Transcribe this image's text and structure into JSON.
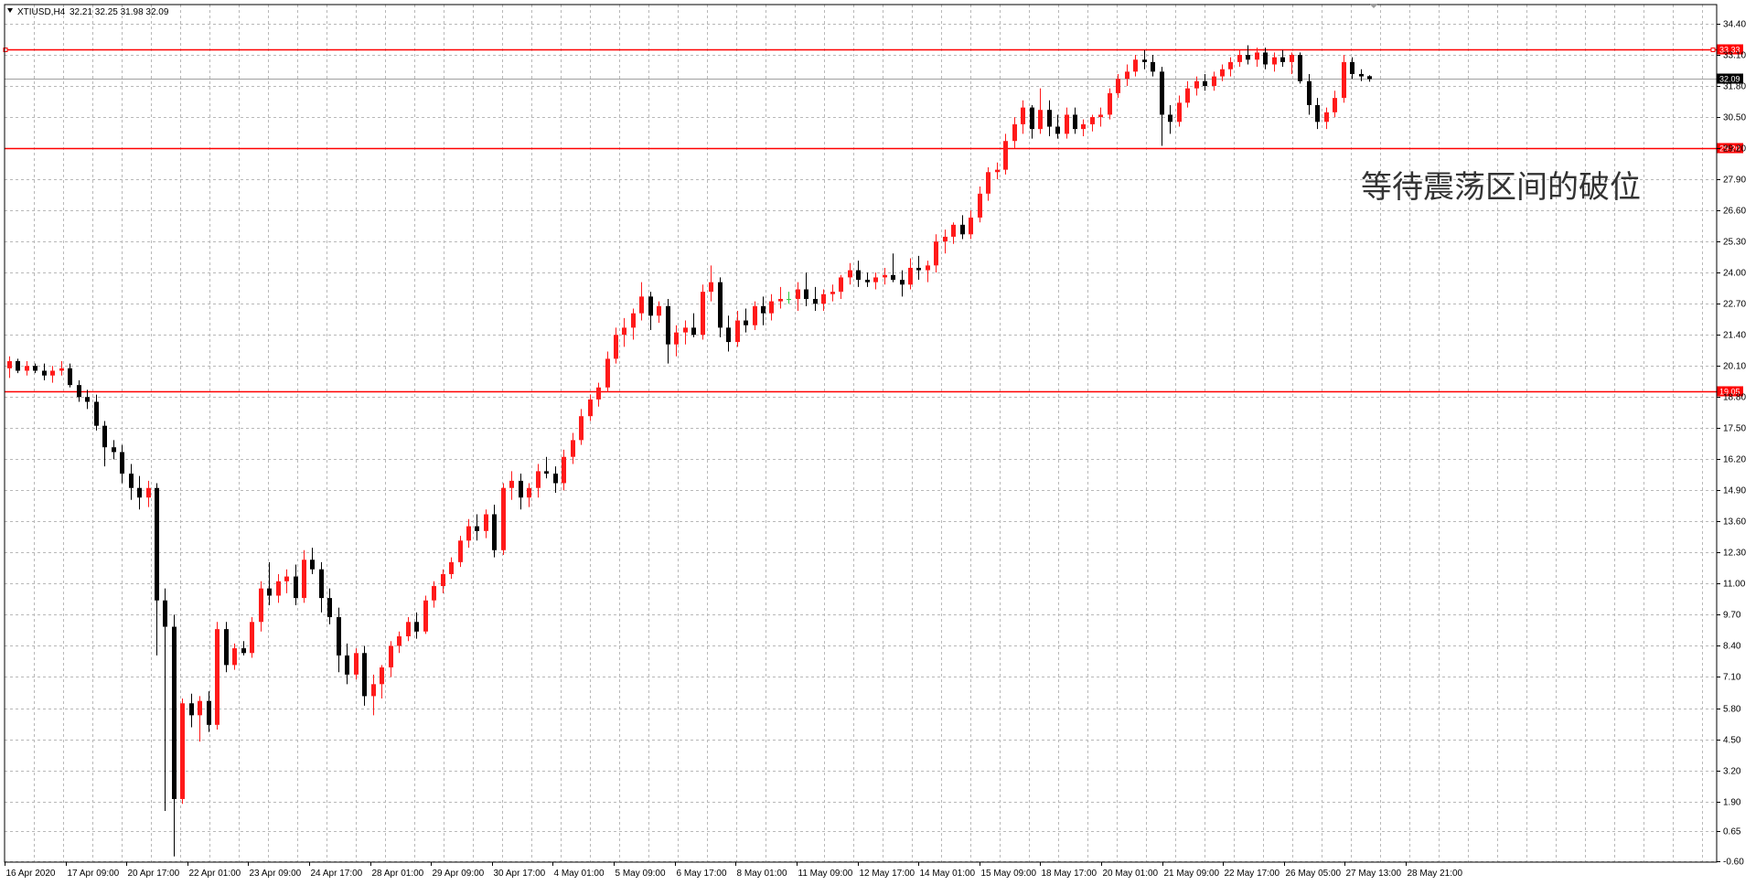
{
  "header": {
    "symbol": "XTIUSD,H4",
    "ohlc": "32.21 32.25 31.98 32.09"
  },
  "colors": {
    "bull": "#ff1a1a",
    "bear": "#000000",
    "doji": "#2ecc40",
    "level": "#ff0000",
    "grid": "#b8b8b8",
    "background": "#ffffff",
    "current_price_bg": "#000000"
  },
  "annotation": {
    "text": "等待震荡区间的破位"
  },
  "chart_data": {
    "type": "candlestick",
    "ylim": [
      -0.6,
      35.0
    ],
    "yticks": [
      "34.40",
      "33.10",
      "31.80",
      "30.50",
      "29.20",
      "27.90",
      "26.60",
      "25.30",
      "24.00",
      "22.70",
      "21.40",
      "20.10",
      "18.80",
      "17.50",
      "16.20",
      "14.90",
      "13.60",
      "12.30",
      "11.00",
      "9.70",
      "8.40",
      "7.10",
      "5.80",
      "4.50",
      "3.20",
      "1.90",
      "0.65",
      "-0.60"
    ],
    "xticks": [
      "16 Apr 2020",
      "17 Apr 09:00",
      "20 Apr 17:00",
      "22 Apr 01:00",
      "23 Apr 09:00",
      "24 Apr 17:00",
      "28 Apr 01:00",
      "29 Apr 09:00",
      "30 Apr 17:00",
      "4 May 01:00",
      "5 May 09:00",
      "6 May 17:00",
      "8 May 01:00",
      "11 May 09:00",
      "12 May 17:00",
      "14 May 01:00",
      "15 May 09:00",
      "18 May 17:00",
      "20 May 01:00",
      "21 May 09:00",
      "22 May 17:00",
      "26 May 05:00",
      "27 May 13:00",
      "28 May 21:00"
    ],
    "levels": [
      {
        "value": 33.33,
        "label": "33.33"
      },
      {
        "value": 29.2,
        "label": "29.20"
      },
      {
        "value": 19.05,
        "label": "19.05"
      }
    ],
    "current_price": {
      "value": 32.09,
      "label": "32.09"
    },
    "ohlc": [
      [
        20.0,
        20.5,
        19.6,
        20.3
      ],
      [
        20.3,
        20.4,
        19.8,
        19.9
      ],
      [
        19.9,
        20.3,
        19.7,
        20.1
      ],
      [
        20.1,
        20.2,
        19.8,
        19.9
      ],
      [
        19.9,
        20.2,
        19.5,
        19.7
      ],
      [
        19.7,
        20.1,
        19.4,
        19.9
      ],
      [
        19.9,
        20.3,
        19.7,
        20.0
      ],
      [
        20.0,
        20.2,
        19.2,
        19.3
      ],
      [
        19.3,
        19.5,
        18.6,
        18.8
      ],
      [
        18.8,
        19.1,
        18.3,
        18.6
      ],
      [
        18.6,
        18.9,
        17.4,
        17.6
      ],
      [
        17.6,
        17.8,
        15.9,
        16.7
      ],
      [
        16.7,
        17.0,
        16.2,
        16.5
      ],
      [
        16.5,
        16.8,
        15.2,
        15.6
      ],
      [
        15.6,
        16.0,
        14.5,
        15.0
      ],
      [
        15.0,
        15.5,
        14.1,
        14.6
      ],
      [
        14.6,
        15.3,
        14.2,
        15.0
      ],
      [
        15.0,
        15.2,
        8.0,
        10.3
      ],
      [
        10.3,
        10.8,
        1.5,
        9.2
      ],
      [
        9.2,
        9.7,
        -0.4,
        2.0
      ],
      [
        2.0,
        6.2,
        1.8,
        6.0
      ],
      [
        6.0,
        6.4,
        5.0,
        5.5
      ],
      [
        5.5,
        6.3,
        4.4,
        6.1
      ],
      [
        6.1,
        6.5,
        4.8,
        5.1
      ],
      [
        5.1,
        9.4,
        4.9,
        9.1
      ],
      [
        9.1,
        9.4,
        7.3,
        7.6
      ],
      [
        7.6,
        8.5,
        7.4,
        8.3
      ],
      [
        8.3,
        8.6,
        8.0,
        8.1
      ],
      [
        8.1,
        9.6,
        7.9,
        9.4
      ],
      [
        9.4,
        11.1,
        9.0,
        10.8
      ],
      [
        10.8,
        11.9,
        10.1,
        10.5
      ],
      [
        10.5,
        11.4,
        10.2,
        11.1
      ],
      [
        11.1,
        11.6,
        10.6,
        11.3
      ],
      [
        11.3,
        11.8,
        10.1,
        10.4
      ],
      [
        10.4,
        12.4,
        10.2,
        12.0
      ],
      [
        12.0,
        12.5,
        11.4,
        11.6
      ],
      [
        11.6,
        11.9,
        9.8,
        10.4
      ],
      [
        10.4,
        10.8,
        9.3,
        9.6
      ],
      [
        9.6,
        10.0,
        7.3,
        8.0
      ],
      [
        8.0,
        8.5,
        6.8,
        7.2
      ],
      [
        7.2,
        8.3,
        7.0,
        8.1
      ],
      [
        8.1,
        8.4,
        5.9,
        6.3
      ],
      [
        6.3,
        7.2,
        5.5,
        6.8
      ],
      [
        6.8,
        7.6,
        6.2,
        7.5
      ],
      [
        7.5,
        8.6,
        7.1,
        8.4
      ],
      [
        8.4,
        9.0,
        8.1,
        8.8
      ],
      [
        8.8,
        9.6,
        8.6,
        9.4
      ],
      [
        9.4,
        9.8,
        8.7,
        9.0
      ],
      [
        9.0,
        10.5,
        8.9,
        10.3
      ],
      [
        10.3,
        11.1,
        10.0,
        10.9
      ],
      [
        10.9,
        11.6,
        10.6,
        11.4
      ],
      [
        11.4,
        12.1,
        11.2,
        11.9
      ],
      [
        11.9,
        13.0,
        11.7,
        12.8
      ],
      [
        12.8,
        13.7,
        12.5,
        13.4
      ],
      [
        13.4,
        13.9,
        12.8,
        13.2
      ],
      [
        13.2,
        14.1,
        12.9,
        13.9
      ],
      [
        13.9,
        14.3,
        12.1,
        12.4
      ],
      [
        12.4,
        15.2,
        12.2,
        15.0
      ],
      [
        15.0,
        15.7,
        14.5,
        15.3
      ],
      [
        15.3,
        15.6,
        14.1,
        14.6
      ],
      [
        14.6,
        15.2,
        14.2,
        15.0
      ],
      [
        15.0,
        16.0,
        14.6,
        15.7
      ],
      [
        15.7,
        16.3,
        15.4,
        15.6
      ],
      [
        15.6,
        15.9,
        14.8,
        15.2
      ],
      [
        15.2,
        16.6,
        14.9,
        16.3
      ],
      [
        16.3,
        17.3,
        16.0,
        17.0
      ],
      [
        17.0,
        18.3,
        16.8,
        18.0
      ],
      [
        18.0,
        18.9,
        17.8,
        18.7
      ],
      [
        18.7,
        19.4,
        18.4,
        19.2
      ],
      [
        19.2,
        20.7,
        19.0,
        20.4
      ],
      [
        20.4,
        21.7,
        20.2,
        21.4
      ],
      [
        21.4,
        22.1,
        20.9,
        21.7
      ],
      [
        21.7,
        22.5,
        21.2,
        22.3
      ],
      [
        22.3,
        23.6,
        22.0,
        23.0
      ],
      [
        23.0,
        23.2,
        21.6,
        22.2
      ],
      [
        22.2,
        22.8,
        21.9,
        22.6
      ],
      [
        22.6,
        22.9,
        20.2,
        21.0
      ],
      [
        21.0,
        21.8,
        20.5,
        21.5
      ],
      [
        21.5,
        22.0,
        21.0,
        21.7
      ],
      [
        21.7,
        22.3,
        21.3,
        21.4
      ],
      [
        21.4,
        23.5,
        21.2,
        23.2
      ],
      [
        23.2,
        24.3,
        22.8,
        23.6
      ],
      [
        23.6,
        23.8,
        21.3,
        21.7
      ],
      [
        21.7,
        22.2,
        20.7,
        21.1
      ],
      [
        21.1,
        22.4,
        20.9,
        22.0
      ],
      [
        22.0,
        22.5,
        21.5,
        21.8
      ],
      [
        21.8,
        22.8,
        21.6,
        22.6
      ],
      [
        22.6,
        23.0,
        21.8,
        22.3
      ],
      [
        22.3,
        23.1,
        22.0,
        22.8
      ],
      [
        22.8,
        23.4,
        22.5,
        22.9
      ],
      [
        22.9,
        23.2,
        22.7,
        22.9
      ],
      [
        22.9,
        23.6,
        22.4,
        23.3
      ],
      [
        23.3,
        24.0,
        22.6,
        22.9
      ],
      [
        22.9,
        23.4,
        22.4,
        22.7
      ],
      [
        22.7,
        23.3,
        22.4,
        23.1
      ],
      [
        23.1,
        23.5,
        22.8,
        23.2
      ],
      [
        23.2,
        23.9,
        22.9,
        23.8
      ],
      [
        23.8,
        24.4,
        23.5,
        24.1
      ],
      [
        24.1,
        24.5,
        23.4,
        23.7
      ],
      [
        23.7,
        24.0,
        23.4,
        23.6
      ],
      [
        23.6,
        24.0,
        23.3,
        23.8
      ],
      [
        23.8,
        24.2,
        23.5,
        23.9
      ],
      [
        23.9,
        24.8,
        23.6,
        23.7
      ],
      [
        23.7,
        24.1,
        23.0,
        23.5
      ],
      [
        23.5,
        24.6,
        23.3,
        24.2
      ],
      [
        24.2,
        24.7,
        23.7,
        24.1
      ],
      [
        24.1,
        24.5,
        23.6,
        24.3
      ],
      [
        24.3,
        25.6,
        24.0,
        25.3
      ],
      [
        25.3,
        25.8,
        24.8,
        25.5
      ],
      [
        25.5,
        26.1,
        25.2,
        26.0
      ],
      [
        26.0,
        26.4,
        25.4,
        25.6
      ],
      [
        25.6,
        26.6,
        25.4,
        26.3
      ],
      [
        26.3,
        27.6,
        26.1,
        27.3
      ],
      [
        27.3,
        28.4,
        27.0,
        28.2
      ],
      [
        28.2,
        28.6,
        27.9,
        28.3
      ],
      [
        28.3,
        29.8,
        28.1,
        29.5
      ],
      [
        29.5,
        30.5,
        29.2,
        30.2
      ],
      [
        30.2,
        31.2,
        29.8,
        30.9
      ],
      [
        30.9,
        31.0,
        29.6,
        30.0
      ],
      [
        30.0,
        31.7,
        29.8,
        30.8
      ],
      [
        30.8,
        31.2,
        29.7,
        30.1
      ],
      [
        30.1,
        30.6,
        29.6,
        29.8
      ],
      [
        29.8,
        30.9,
        29.6,
        30.6
      ],
      [
        30.6,
        30.9,
        29.8,
        30.0
      ],
      [
        30.0,
        30.4,
        29.7,
        30.2
      ],
      [
        30.2,
        30.6,
        29.9,
        30.5
      ],
      [
        30.5,
        30.9,
        30.1,
        30.6
      ],
      [
        30.6,
        31.7,
        30.4,
        31.5
      ],
      [
        31.5,
        32.3,
        31.3,
        32.1
      ],
      [
        32.1,
        32.7,
        31.8,
        32.4
      ],
      [
        32.4,
        33.1,
        32.2,
        32.9
      ],
      [
        32.9,
        33.3,
        32.5,
        32.8
      ],
      [
        32.8,
        33.1,
        32.2,
        32.4
      ],
      [
        32.4,
        32.6,
        29.3,
        30.6
      ],
      [
        30.6,
        31.0,
        29.8,
        30.3
      ],
      [
        30.3,
        31.4,
        30.1,
        31.1
      ],
      [
        31.1,
        32.0,
        30.9,
        31.7
      ],
      [
        31.7,
        32.2,
        31.4,
        32.0
      ],
      [
        32.0,
        32.3,
        31.6,
        31.8
      ],
      [
        31.8,
        32.4,
        31.6,
        32.2
      ],
      [
        32.2,
        32.7,
        32.0,
        32.5
      ],
      [
        32.5,
        33.0,
        32.2,
        32.8
      ],
      [
        32.8,
        33.3,
        32.6,
        33.1
      ],
      [
        33.1,
        33.5,
        32.7,
        32.9
      ],
      [
        32.9,
        33.4,
        32.6,
        33.2
      ],
      [
        33.2,
        33.4,
        32.5,
        32.7
      ],
      [
        32.7,
        33.2,
        32.4,
        33.0
      ],
      [
        33.0,
        33.3,
        32.6,
        32.8
      ],
      [
        32.8,
        33.2,
        32.3,
        33.1
      ],
      [
        33.1,
        33.2,
        31.9,
        32.0
      ],
      [
        32.0,
        32.3,
        30.6,
        31.0
      ],
      [
        31.0,
        31.3,
        30.0,
        30.3
      ],
      [
        30.3,
        30.9,
        30.0,
        30.7
      ],
      [
        30.7,
        31.6,
        30.5,
        31.3
      ],
      [
        31.3,
        33.1,
        31.1,
        32.8
      ],
      [
        32.8,
        33.0,
        32.1,
        32.3
      ],
      [
        32.3,
        32.5,
        32.0,
        32.2
      ],
      [
        32.21,
        32.25,
        31.98,
        32.09
      ]
    ]
  }
}
